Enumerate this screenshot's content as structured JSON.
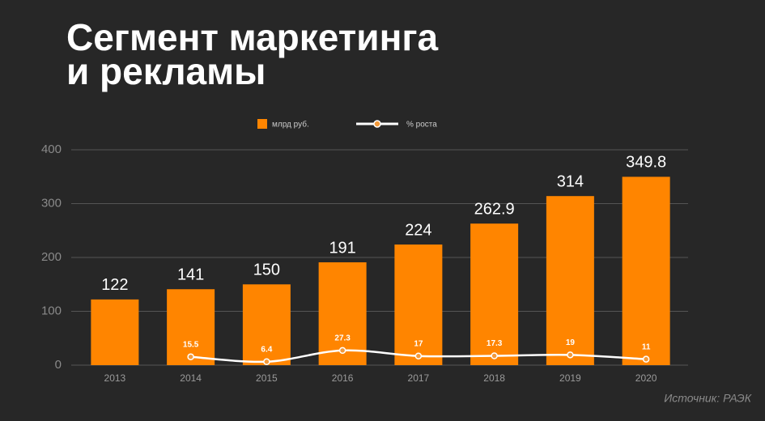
{
  "chart_data": {
    "type": "bar",
    "title": [
      "Сегмент маркетинга",
      "и рекламы"
    ],
    "source": "Источник: РАЭК",
    "categories": [
      "2013",
      "2014",
      "2015",
      "2016",
      "2017",
      "2018",
      "2019",
      "2020"
    ],
    "series": [
      {
        "name": "млрд руб.",
        "type": "bar",
        "color": "#ff8500",
        "values": [
          122,
          141,
          150,
          191,
          224,
          262.9,
          314,
          349.8
        ]
      },
      {
        "name": "% роста",
        "type": "line",
        "color": "#ffffff",
        "marker_color": "#f39a3a",
        "values": [
          null,
          15.5,
          6.4,
          27.3,
          17,
          17.3,
          19,
          11
        ]
      }
    ],
    "ylim": [
      0,
      400
    ],
    "yticks": [
      0,
      100,
      200,
      300,
      400
    ],
    "grid": true,
    "legend": "top"
  }
}
